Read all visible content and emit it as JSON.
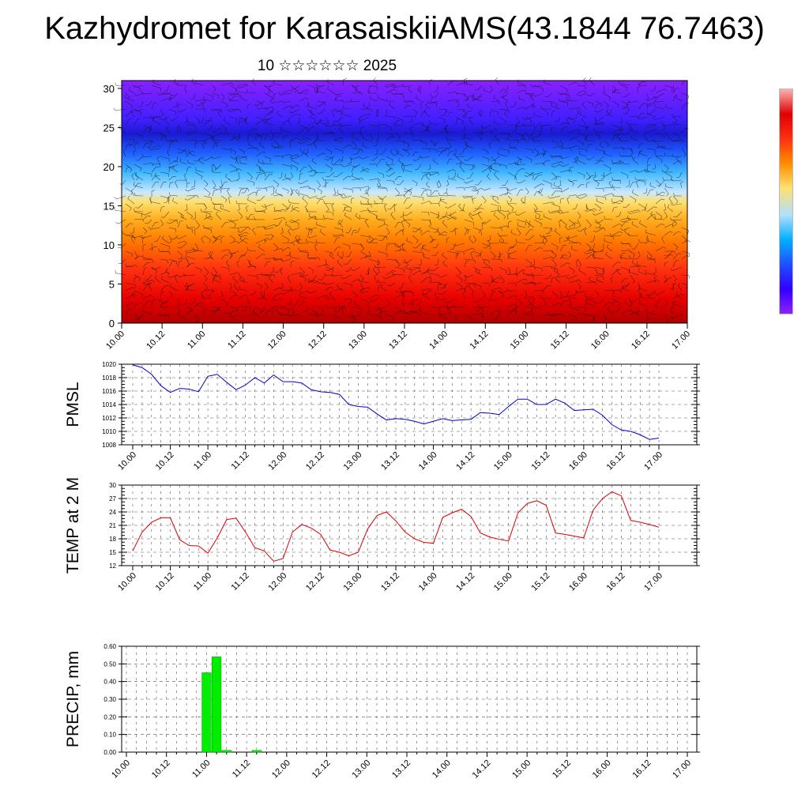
{
  "title": "Kazhydromet for KarasaiskiiAMS(43.1844 76.7463)",
  "subtitle": "10 ☆☆☆☆☆☆ 2025",
  "colorbar_colors": [
    "#ffb0b0",
    "#e00000",
    "#ff3010",
    "#ff8c00",
    "#ffe070",
    "#b0e0ff",
    "#00b0ff",
    "#2050ff",
    "#3000ff",
    "#9020ff"
  ],
  "chart_data": [
    {
      "type": "heatmap",
      "name": "temperature-wind-section",
      "title": "",
      "xlabel": "",
      "ylabel": "",
      "xlim": [
        0,
        56
      ],
      "ylim": [
        0,
        31
      ],
      "x_ticks": [
        "10.00",
        "10.12",
        "11.00",
        "11.12",
        "12.00",
        "12.12",
        "13.00",
        "13.12",
        "14.00",
        "14.12",
        "15.00",
        "15.12",
        "16.00",
        "16.12",
        "17.00"
      ],
      "y_ticks": [
        0,
        5,
        10,
        15,
        20,
        25,
        30
      ]
    },
    {
      "type": "line",
      "name": "pmsl",
      "xlabel": "",
      "ylabel": "PMSL",
      "ylim": [
        1008,
        1020
      ],
      "y_ticks": [
        "1008",
        "1010",
        "1012",
        "1014",
        "1016",
        "1018",
        "1020"
      ],
      "x_ticks": [
        "10.00",
        "10.12",
        "11.00",
        "11.12",
        "12.00",
        "12.12",
        "13.00",
        "13.12",
        "14.00",
        "14.12",
        "15.00",
        "15.12",
        "16.00",
        "16.12",
        "17.00"
      ],
      "color": "#0000cc",
      "x": [
        0,
        1,
        2,
        3,
        4,
        5,
        6,
        7,
        8,
        9,
        10,
        11,
        12,
        13,
        14,
        15,
        16,
        17,
        18,
        19,
        20,
        21,
        22,
        23,
        24,
        25,
        26,
        27,
        28,
        29,
        30,
        31,
        32,
        33,
        34,
        35,
        36,
        37,
        38,
        39,
        40,
        41,
        42,
        43,
        44,
        45,
        46,
        47,
        48,
        49,
        50,
        51,
        52,
        53,
        54,
        55,
        56
      ],
      "values": [
        1019.9,
        1019.5,
        1018.5,
        1016.8,
        1015.8,
        1016.4,
        1016.3,
        1015.9,
        1018.2,
        1018.5,
        1017.3,
        1016.2,
        1016.9,
        1018.0,
        1017.2,
        1018.4,
        1017.4,
        1017.4,
        1017.2,
        1016.2,
        1015.9,
        1015.8,
        1015.5,
        1014.0,
        1013.7,
        1013.6,
        1012.6,
        1011.7,
        1011.9,
        1011.8,
        1011.5,
        1011.1,
        1011.5,
        1011.9,
        1011.6,
        1011.7,
        1011.8,
        1012.8,
        1012.7,
        1012.5,
        1013.7,
        1014.8,
        1014.8,
        1014.0,
        1014.0,
        1014.8,
        1014.2,
        1013.1,
        1013.2,
        1013.3,
        1012.4,
        1011.0,
        1010.2,
        1010.0,
        1009.5,
        1008.8,
        1009.0
      ]
    },
    {
      "type": "line",
      "name": "temp-2m",
      "xlabel": "",
      "ylabel": "TEMP at 2 M",
      "ylim": [
        12,
        30
      ],
      "y_ticks": [
        "12",
        "15",
        "18",
        "21",
        "24",
        "27",
        "30"
      ],
      "x_ticks": [
        "10.00",
        "10.12",
        "11.00",
        "11.12",
        "12.00",
        "12.12",
        "13.00",
        "13.12",
        "14.00",
        "14.12",
        "15.00",
        "15.12",
        "16.00",
        "16.12",
        "17.00"
      ],
      "color": "#dd0000",
      "x": [
        0,
        1,
        2,
        3,
        4,
        5,
        6,
        7,
        8,
        9,
        10,
        11,
        12,
        13,
        14,
        15,
        16,
        17,
        18,
        19,
        20,
        21,
        22,
        23,
        24,
        25,
        26,
        27,
        28,
        29,
        30,
        31,
        32,
        33,
        34,
        35,
        36,
        37,
        38,
        39,
        40,
        41,
        42,
        43,
        44,
        45,
        46,
        47,
        48,
        49,
        50,
        51,
        52,
        53,
        54,
        55,
        56
      ],
      "values": [
        15.3,
        19.5,
        21.7,
        22.7,
        22.7,
        17.8,
        16.5,
        16.4,
        14.8,
        18.2,
        22.3,
        22.6,
        19.5,
        16.0,
        15.3,
        13.0,
        13.6,
        19.5,
        21.2,
        20.4,
        19.0,
        15.5,
        15.0,
        14.2,
        15.0,
        20.2,
        23.2,
        24.0,
        22.0,
        19.5,
        18.0,
        17.2,
        17.0,
        22.8,
        23.8,
        24.6,
        23.0,
        19.3,
        18.4,
        17.9,
        17.5,
        23.8,
        25.9,
        26.5,
        25.5,
        19.3,
        19.0,
        18.6,
        18.2,
        24.4,
        27.0,
        28.5,
        27.6,
        22.1,
        21.7,
        21.2,
        20.6
      ]
    },
    {
      "type": "bar",
      "name": "precip",
      "xlabel": "",
      "ylabel": "PRECIP, mm",
      "ylim": [
        0,
        0.6
      ],
      "y_ticks": [
        "0.00",
        "0.10",
        "0.20",
        "0.30",
        "0.40",
        "0.50",
        "0.60"
      ],
      "x_ticks": [
        "10.00",
        "10.12",
        "11.00",
        "11.12",
        "12.00",
        "12.12",
        "13.00",
        "13.12",
        "14.00",
        "14.12",
        "15.00",
        "15.12",
        "16.00",
        "16.12",
        "17.00"
      ],
      "color": "#00ee00",
      "x": [
        8,
        9,
        10,
        13
      ],
      "values": [
        0.45,
        0.54,
        0.01,
        0.01
      ]
    }
  ]
}
